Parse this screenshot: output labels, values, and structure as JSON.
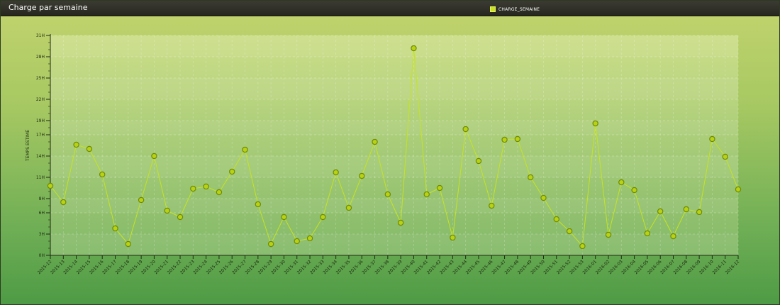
{
  "title": "Charge par semaine",
  "legend": {
    "label": "CHARGE_SEMAINE"
  },
  "colors": {
    "line": "#c6e41f",
    "marker": "#b8d214",
    "marker_edge": "#6f8a08"
  },
  "chart_data": {
    "type": "line",
    "title": "Charge par semaine",
    "xlabel": "",
    "ylabel": "TEMPS ESTIMÉ",
    "ylim": [
      0,
      31
    ],
    "y_ticks": [
      0,
      3,
      6,
      8,
      11,
      14,
      17,
      19,
      22,
      25,
      28,
      31
    ],
    "y_tick_labels": [
      "0H",
      "3H",
      "6H",
      "8H",
      "11H",
      "14H",
      "17H",
      "19H",
      "22H",
      "25H",
      "28H",
      "31H"
    ],
    "grid": true,
    "legend_position": "top-right",
    "categories": [
      "2015-12",
      "2015-13",
      "2015-14",
      "2015-15",
      "2015-16",
      "2015-17",
      "2015-18",
      "2015-19",
      "2015-20",
      "2015-21",
      "2015-22",
      "2015-23",
      "2015-24",
      "2015-25",
      "2015-26",
      "2015-27",
      "2015-28",
      "2015-29",
      "2015-30",
      "2015-31",
      "2015-32",
      "2015-33",
      "2015-34",
      "2015-35",
      "2015-36",
      "2015-37",
      "2015-38",
      "2015-39",
      "2015-40",
      "2015-41",
      "2015-42",
      "2015-43",
      "2015-44",
      "2015-45",
      "2015-46",
      "2015-47",
      "2015-48",
      "2015-49",
      "2015-50",
      "2015-51",
      "2015-52",
      "2015-53",
      "2016-01",
      "2016-02",
      "2016-03",
      "2016-04",
      "2016-05",
      "2016-06",
      "2016-07",
      "2016-08",
      "2016-09",
      "2016-10",
      "2016-11",
      "2016-12"
    ],
    "series": [
      {
        "name": "CHARGE_SEMAINE",
        "values": [
          9.8,
          7.5,
          15.6,
          15.0,
          11.4,
          3.8,
          1.6,
          7.8,
          14.0,
          6.3,
          5.4,
          9.4,
          9.7,
          8.9,
          11.8,
          14.9,
          7.2,
          1.6,
          5.4,
          2.0,
          2.4,
          5.4,
          11.7,
          6.7,
          11.2,
          16.0,
          8.6,
          4.6,
          29.2,
          8.6,
          9.5,
          2.5,
          17.8,
          13.3,
          7.0,
          16.3,
          16.4,
          11.0,
          8.1,
          5.1,
          3.4,
          1.3,
          18.6,
          2.9,
          10.3,
          9.2,
          3.1,
          6.2,
          2.7,
          6.5,
          6.1,
          16.4,
          13.9,
          9.3
        ]
      }
    ]
  }
}
